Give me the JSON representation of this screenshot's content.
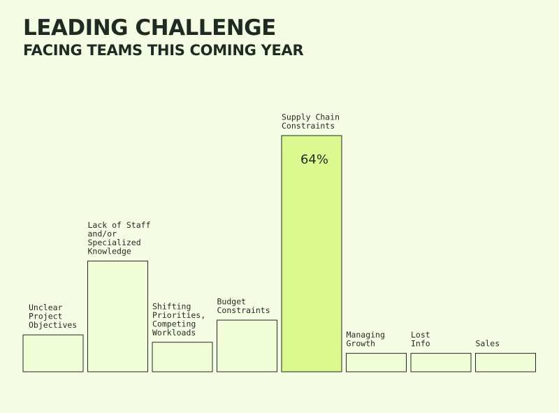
{
  "chart_data": {
    "type": "bar",
    "title": "LEADING CHALLENGE",
    "subtitle": "FACING TEAMS THIS COMING YEAR",
    "categories": [
      [
        "Unclear",
        "Project",
        "Objectives"
      ],
      [
        "Lack of Staff",
        "and/or",
        "Specialized",
        "Knowledge"
      ],
      [
        "Shifting",
        "Priorities,",
        "Competing",
        "Workloads"
      ],
      [
        "Budget",
        "Constraints"
      ],
      [
        "Supply Chain",
        "Constraints"
      ],
      [
        "Managing",
        "Growth"
      ],
      [
        "Lost",
        "Info"
      ],
      [
        "Sales"
      ]
    ],
    "values": [
      10,
      30,
      8,
      14,
      64,
      5,
      5,
      5
    ],
    "data_labels": [
      "",
      "",
      "",
      "",
      "64%",
      "",
      "",
      ""
    ],
    "highlight_index": 4,
    "ylim": [
      0,
      64
    ],
    "grid": false,
    "colors": {
      "bar": "#f1fdd6",
      "bar_highlight": "#dcf98f",
      "stroke": "#1f2a22",
      "background": "#f4fde4"
    }
  }
}
